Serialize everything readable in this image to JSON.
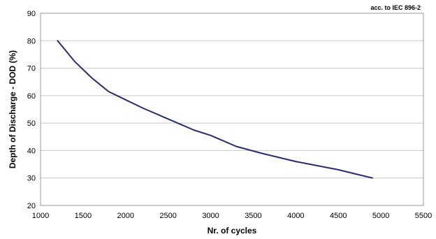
{
  "chart_data": {
    "type": "line",
    "title": "",
    "annotation": "acc. to IEC 896-2",
    "xlabel": "Nr. of cycles",
    "ylabel": "Depth of Discharge - DOD (%)",
    "xlim": [
      1000,
      5500
    ],
    "ylim": [
      20,
      90
    ],
    "x_ticks": [
      1000,
      1500,
      2000,
      2500,
      3000,
      3500,
      4000,
      4500,
      5000,
      5500
    ],
    "y_ticks": [
      20,
      30,
      40,
      50,
      60,
      70,
      80,
      90
    ],
    "grid": true,
    "legend": "none",
    "series": [
      {
        "color": "#2b2b6b",
        "x": [
          1200,
          1400,
          1600,
          1800,
          2000,
          2200,
          2500,
          2800,
          3000,
          3300,
          3600,
          4000,
          4500,
          4900
        ],
        "y": [
          80,
          72.5,
          66.5,
          61.5,
          58.5,
          55.5,
          51.5,
          47.5,
          45.5,
          41.5,
          39,
          36,
          33,
          30
        ]
      }
    ]
  }
}
